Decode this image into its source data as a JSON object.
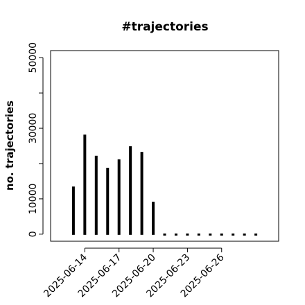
{
  "chart_data": {
    "type": "bar",
    "title": "#trajectories",
    "y_label": "no. trajectories",
    "x": [
      "2025-06-13",
      "2025-06-14",
      "2025-06-15",
      "2025-06-16",
      "2025-06-17",
      "2025-06-18",
      "2025-06-19",
      "2025-06-20",
      "2025-06-21",
      "2025-06-22",
      "2025-06-23",
      "2025-06-24",
      "2025-06-25",
      "2025-06-26",
      "2025-06-27",
      "2025-06-28",
      "2025-06-29"
    ],
    "values": [
      13500,
      28200,
      22200,
      18800,
      21200,
      24900,
      23300,
      9200,
      0,
      0,
      0,
      0,
      0,
      0,
      0,
      0,
      0
    ],
    "color": "#000000",
    "xlim": [
      "2025-06-11",
      "2025-07-01"
    ],
    "xticks": [
      "2025-06-14",
      "2025-06-17",
      "2025-06-20",
      "2025-06-23",
      "2025-06-26"
    ],
    "ylim": [
      -2000,
      52000
    ],
    "yticks": [
      0,
      10000,
      30000,
      50000
    ],
    "yticks_unlabeled": [
      20000,
      40000
    ],
    "grid": false
  }
}
